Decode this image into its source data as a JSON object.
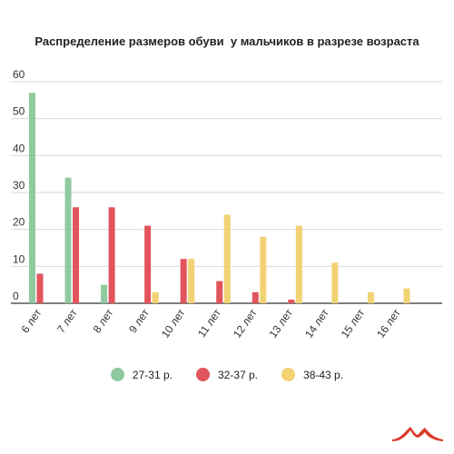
{
  "chart_data": {
    "type": "bar",
    "title": "Распределение размеров обуви  у мальчиков в разрезе возраста",
    "categories": [
      "6 лет",
      "7 лет",
      "8 лет",
      "9 лет",
      "10 лет",
      "11 лет",
      "12 лет",
      "13 лет",
      "14 лет",
      "15 лет",
      "16 лет"
    ],
    "series": [
      {
        "name": "27-31 р.",
        "color": "#8fc9a0",
        "values": [
          57,
          34,
          5,
          0,
          0,
          0,
          0,
          0,
          0,
          0,
          0
        ]
      },
      {
        "name": "32-37 р.",
        "color": "#e2545b",
        "values": [
          8,
          26,
          26,
          21,
          12,
          6,
          3,
          1,
          0,
          0,
          0
        ]
      },
      {
        "name": "38-43 р.",
        "color": "#f2d272",
        "values": [
          0,
          0,
          0,
          3,
          12,
          24,
          18,
          21,
          11,
          3,
          4
        ]
      }
    ],
    "y_ticks": [
      "0",
      "10",
      "20",
      "30",
      "40",
      "50",
      "60"
    ],
    "ylim": [
      0,
      60
    ],
    "grid": true,
    "legend_position": "bottom"
  },
  "logo": {
    "icon": "mountain-logo-icon",
    "color": "#d93a2b"
  }
}
